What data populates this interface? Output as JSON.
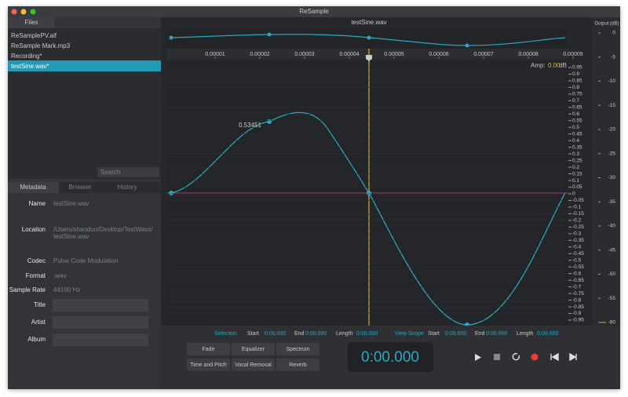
{
  "window": {
    "title": "ReSample"
  },
  "files": {
    "tab": "Files",
    "items": [
      "ReSamplePV.aif",
      "ReSample Mark.mp3",
      "Recording*",
      "testSine.wav*"
    ],
    "search": "Search"
  },
  "tabs": [
    "Metadata",
    "Browser",
    "History"
  ],
  "metadata": [
    {
      "label": "Name",
      "value": "testSine.wav"
    },
    {
      "label": "Location",
      "value": "/Users/shaoduo/Desktop/TestWavs/",
      "value2": "testSine.wav"
    },
    {
      "label": "Codec",
      "value": "Pulse Code Modulation"
    },
    {
      "label": "Format",
      "value": ".wav"
    },
    {
      "label": "Sample Rate",
      "value": "44100 Hz"
    }
  ],
  "fields": [
    "Title",
    "Artist",
    "Album"
  ],
  "waveform": {
    "filename": "testSine.wav",
    "time_ticks": [
      "0.00001",
      "0.00002",
      "0.00003",
      "0.00004",
      "0.00005",
      "0.00006",
      "0.00007",
      "0.00008",
      "0.00009"
    ],
    "amp_label": "Amp:",
    "amp_value": "0.00",
    "amp_unit": "dB",
    "amp_ticks": [
      "0.95",
      "0.9",
      "0.85",
      "0.8",
      "0.75",
      "0.7",
      "0.65",
      "0.6",
      "0.55",
      "0.5",
      "0.45",
      "0.4",
      "0.35",
      "0.3",
      "0.25",
      "0.2",
      "0.15",
      "0.1",
      "0.05",
      "0",
      "-0.05",
      "-0.1",
      "-0.15",
      "-0.2",
      "-0.25",
      "-0.3",
      "-0.35",
      "-0.4",
      "-0.45",
      "-0.5",
      "-0.55",
      "-0.6",
      "-0.65",
      "-0.7",
      "-0.75",
      "-0.8",
      "-0.85",
      "-0.9",
      "-0.95"
    ],
    "marker_label": "0.53451"
  },
  "output": {
    "label": "Output (dB)",
    "ticks": [
      "0",
      "-5",
      "-10",
      "-15",
      "-20",
      "-25",
      "-30",
      "-35",
      "-40",
      "-45",
      "-50",
      "-55",
      "-60"
    ]
  },
  "selection": {
    "label": "Selection",
    "start_label": "Start",
    "start": "0:00.000",
    "end_label": "End",
    "end": "0:00.000",
    "length_label": "Length",
    "length": "0:00.000"
  },
  "view_scope": {
    "label": "View Scope",
    "start_label": "Start",
    "start": "0:00.000",
    "end_label": "End",
    "end": "0:00.000",
    "length_label": "Length",
    "length": "0:00.000"
  },
  "effects": [
    "Fade",
    "Equalizer",
    "Spectrum",
    "Time and Pitch",
    "Vocal Removal",
    "Reverb"
  ],
  "time_display": "0:00.000"
}
